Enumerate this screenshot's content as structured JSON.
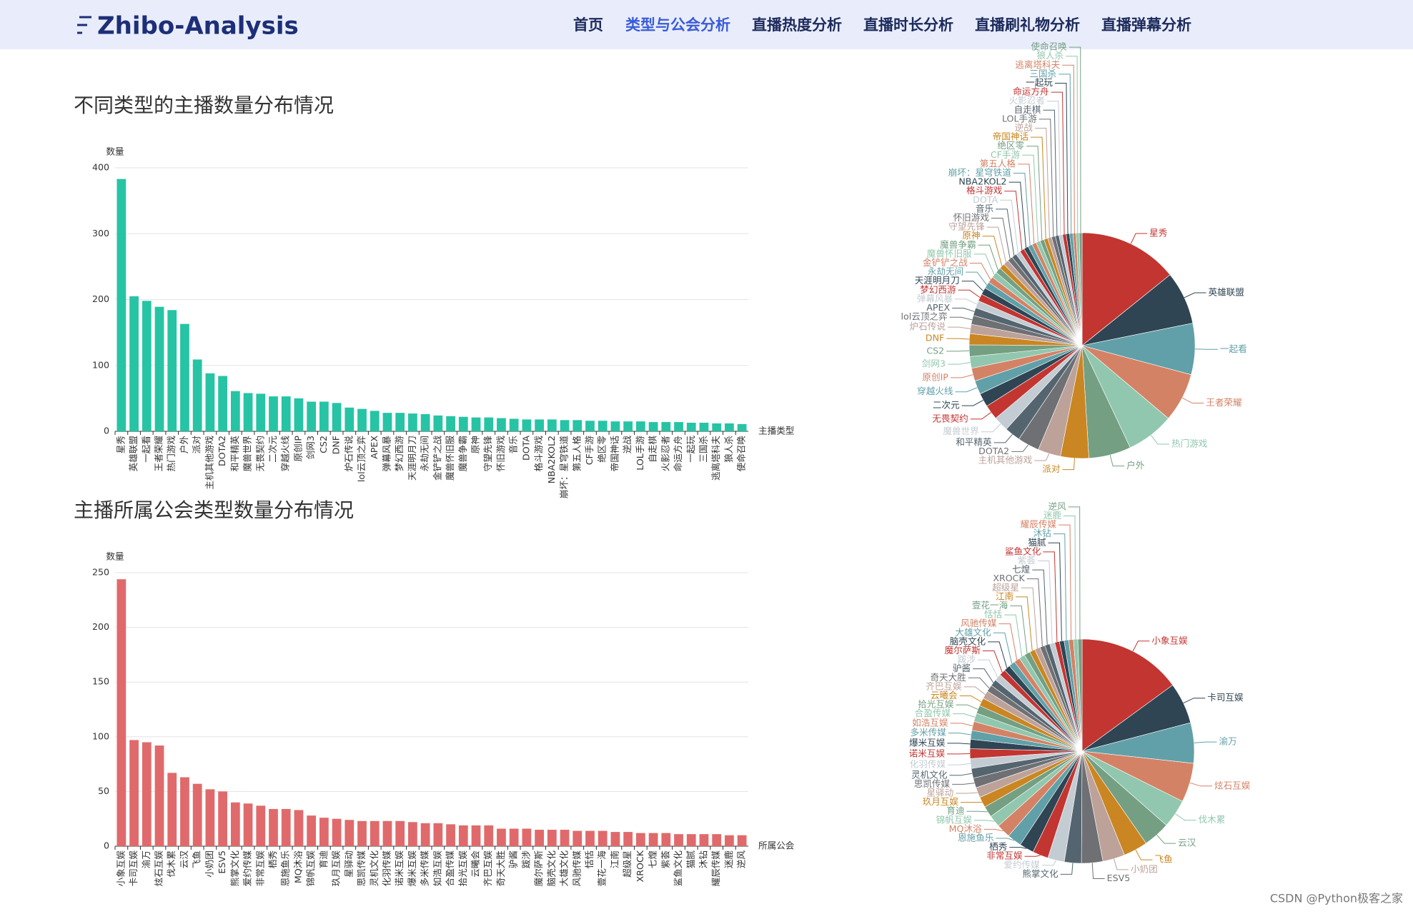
{
  "nav": {
    "brand": "Zhibo-Analysis",
    "items": [
      "首页",
      "类型与公会分析",
      "直播热度分析",
      "直播时长分析",
      "直播刷礼物分析",
      "直播弹幕分析"
    ],
    "active": 1
  },
  "sections": [
    {
      "title": "不同类型的主播数量分布情况"
    },
    {
      "title": "主播所属公会类型数量分布情况"
    }
  ],
  "watermark": "CSDN @Python极客之家",
  "chart_data": [
    {
      "type": "bar",
      "y_label": "数量",
      "x_label": "主播类型",
      "color": "#26c4a5",
      "ylim": [
        0,
        400
      ],
      "yticks": [
        0,
        100,
        200,
        300,
        400
      ],
      "grid": true,
      "categories": [
        "星秀",
        "英雄联盟",
        "一起看",
        "王者荣耀",
        "热门游戏",
        "户外",
        "派对",
        "主机其他游戏",
        "DOTA2",
        "和平精英",
        "魔兽世界",
        "无畏契约",
        "二次元",
        "穿越火线",
        "原创IP",
        "剑网3",
        "CS2",
        "DNF",
        "炉石传说",
        "lol云顶之弈",
        "APEX",
        "弹幕风暴",
        "梦幻西游",
        "天涯明月刀",
        "永劫无间",
        "金铲铲之战",
        "魔兽怀旧服",
        "魔兽争霸",
        "原神",
        "守望先锋",
        "怀旧游戏",
        "音乐",
        "DOTA",
        "格斗游戏",
        "NBA2KOL2",
        "崩坏：星穹铁道",
        "第五人格",
        "CF手游",
        "绝区零",
        "帝国神话",
        "逆战",
        "LOL手游",
        "自走棋",
        "火影忍者",
        "命运方舟",
        "一起玩",
        "三国杀",
        "逃离塔科夫",
        "狼人杀",
        "使命召唤"
      ],
      "values": [
        383,
        205,
        198,
        189,
        184,
        163,
        109,
        88,
        84,
        61,
        58,
        57,
        53,
        53,
        50,
        45,
        45,
        43,
        36,
        34,
        31,
        28,
        28,
        27,
        26,
        24,
        23,
        22,
        21,
        21,
        20,
        19,
        18,
        18,
        18,
        17,
        17,
        16,
        16,
        15,
        15,
        15,
        14,
        14,
        14,
        13,
        13,
        12,
        12,
        11
      ]
    },
    {
      "type": "pie",
      "colors": [
        "#c23531",
        "#2f4554",
        "#61a0a8",
        "#d48265",
        "#91c7ae",
        "#749f83",
        "#ca8622",
        "#bda29a",
        "#6e7074",
        "#546570",
        "#c4ccd3"
      ],
      "categories": [
        "星秀",
        "英雄联盟",
        "一起看",
        "王者荣耀",
        "热门游戏",
        "户外",
        "派对",
        "主机其他游戏",
        "DOTA2",
        "和平精英",
        "魔兽世界",
        "无畏契约",
        "二次元",
        "穿越火线",
        "原创IP",
        "剑网3",
        "CS2",
        "DNF",
        "炉石传说",
        "lol云顶之弈",
        "APEX",
        "弹幕风暴",
        "梦幻西游",
        "天涯明月刀",
        "永劫无间",
        "金铲铲之战",
        "魔兽怀旧服",
        "魔兽争霸",
        "原神",
        "守望先锋",
        "怀旧游戏",
        "音乐",
        "DOTA",
        "格斗游戏",
        "NBA2KOL2",
        "崩坏：星穹铁道",
        "第五人格",
        "CF手游",
        "绝区零",
        "帝国神话",
        "逆战",
        "LOL手游",
        "自走棋",
        "火影忍者",
        "命运方舟",
        "一起玩",
        "三国杀",
        "逃离塔科夫",
        "狼人杀",
        "使命召唤"
      ],
      "values": [
        383,
        205,
        198,
        189,
        184,
        163,
        109,
        88,
        84,
        61,
        58,
        57,
        53,
        53,
        50,
        45,
        45,
        43,
        36,
        34,
        31,
        28,
        28,
        27,
        26,
        24,
        23,
        22,
        21,
        21,
        20,
        19,
        18,
        18,
        18,
        17,
        17,
        16,
        16,
        15,
        15,
        15,
        14,
        14,
        14,
        13,
        13,
        12,
        12,
        11
      ]
    },
    {
      "type": "bar",
      "y_label": "数量",
      "x_label": "所属公会",
      "color": "#e06a6b",
      "ylim": [
        0,
        250
      ],
      "yticks": [
        0,
        50,
        100,
        150,
        200,
        250
      ],
      "grid": true,
      "categories": [
        "小象互娱",
        "卡司互娱",
        "渝万",
        "炫石互娱",
        "伐木累",
        "云汉",
        "飞鱼",
        "小奶团",
        "ESV5",
        "熊掌文化",
        "爱约传媒",
        "非常互娱",
        "栖秀",
        "恩施鱼乐",
        "MQ沐浴",
        "锦帆互娱",
        "育迪",
        "玖月互娱",
        "星驿动",
        "思凯传媒",
        "灵机文化",
        "化羽传媒",
        "诺米互娱",
        "爆米互娱",
        "多米传媒",
        "如浩互娱",
        "合盈传媒",
        "拾光互娱",
        "云曦会",
        "齐巴互娱",
        "奇天大胜",
        "驴酱",
        "跋涉",
        "魔尔萨斯",
        "脑壳文化",
        "大雄文化",
        "风驰传媒",
        "恬恬",
        "壹花一海",
        "江南",
        "超级星",
        "XROCK",
        "七煌",
        "紫荟",
        "鲨鱼文化",
        "猫腻",
        "沐钻",
        "耀辰传媒",
        "迷鹿",
        "逆风"
      ],
      "values": [
        244,
        97,
        95,
        92,
        67,
        63,
        57,
        52,
        50,
        40,
        39,
        37,
        34,
        34,
        33,
        28,
        26,
        25,
        24,
        23,
        23,
        23,
        23,
        22,
        21,
        21,
        20,
        19,
        19,
        19,
        16,
        16,
        16,
        15,
        15,
        15,
        14,
        14,
        14,
        13,
        13,
        12,
        12,
        12,
        11,
        11,
        11,
        11,
        10,
        10
      ]
    },
    {
      "type": "pie",
      "colors": [
        "#c23531",
        "#2f4554",
        "#61a0a8",
        "#d48265",
        "#91c7ae",
        "#749f83",
        "#ca8622",
        "#bda29a",
        "#6e7074",
        "#546570",
        "#c4ccd3"
      ],
      "categories": [
        "小象互娱",
        "卡司互娱",
        "渝万",
        "炫石互娱",
        "伐木累",
        "云汉",
        "飞鱼",
        "小奶团",
        "ESV5",
        "熊掌文化",
        "爱约传媒",
        "非常互娱",
        "栖秀",
        "恩施鱼乐",
        "MQ沐浴",
        "锦帆互娱",
        "育迪",
        "玖月互娱",
        "星驿动",
        "思凯传媒",
        "灵机文化",
        "化羽传媒",
        "诺米互娱",
        "爆米互娱",
        "多米传媒",
        "如浩互娱",
        "合盈传媒",
        "拾光互娱",
        "云曦会",
        "齐巴互娱",
        "奇天大胜",
        "驴酱",
        "跋涉",
        "魔尔萨斯",
        "脑壳文化",
        "大雄文化",
        "风驰传媒",
        "恬恬",
        "壹花一海",
        "江南",
        "超级星",
        "XROCK",
        "七煌",
        "紫荟",
        "鲨鱼文化",
        "猫腻",
        "沐钻",
        "耀辰传媒",
        "迷鹿",
        "逆风"
      ],
      "values": [
        244,
        97,
        95,
        92,
        67,
        63,
        57,
        52,
        50,
        40,
        39,
        37,
        34,
        34,
        33,
        28,
        26,
        25,
        24,
        23,
        23,
        23,
        23,
        22,
        21,
        21,
        20,
        19,
        19,
        19,
        16,
        16,
        16,
        15,
        15,
        15,
        14,
        14,
        14,
        13,
        13,
        12,
        12,
        12,
        11,
        11,
        11,
        11,
        10,
        10
      ]
    }
  ]
}
